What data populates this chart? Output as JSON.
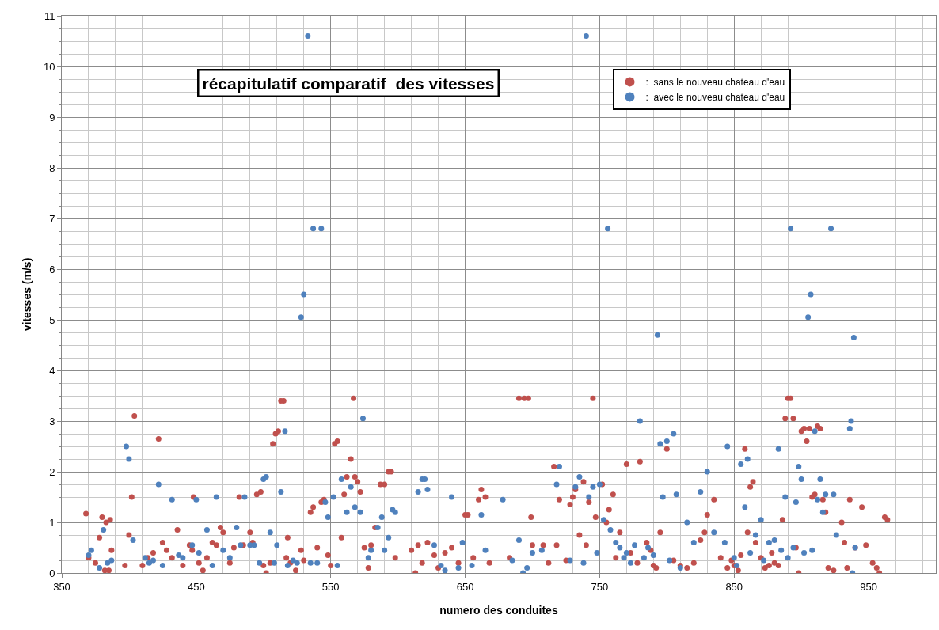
{
  "chart_data": {
    "type": "scatter",
    "title": "récapitulatif comparatif  des vitesses",
    "xlabel": "numero des conduites",
    "ylabel": "vitesses (m/s)",
    "xlim": [
      350,
      1000
    ],
    "xticks": [
      350,
      450,
      550,
      650,
      750,
      850,
      950
    ],
    "ylim": [
      0,
      11
    ],
    "yticks": [
      0,
      1,
      2,
      3,
      4,
      5,
      6,
      7,
      8,
      9,
      10,
      11
    ],
    "grid": true,
    "legend": "top right",
    "marker": "circle",
    "series": [
      {
        "name": ":  sans le nouveau chateau d'eau",
        "color": "#c0504d",
        "x": [
          368,
          370,
          375,
          378,
          380,
          382,
          383,
          386,
          387,
          385,
          397,
          400,
          402,
          404,
          410,
          414,
          418,
          422,
          425,
          428,
          432,
          436,
          440,
          445,
          447,
          448,
          452,
          455,
          458,
          462,
          465,
          468,
          470,
          475,
          478,
          482,
          485,
          490,
          492,
          495,
          498,
          500,
          502,
          505,
          507,
          509,
          511,
          513,
          515,
          517,
          518,
          520,
          524,
          528,
          530,
          535,
          537,
          540,
          543,
          545,
          548,
          550,
          553,
          555,
          558,
          560,
          562,
          565,
          567,
          568,
          570,
          572,
          575,
          578,
          580,
          583,
          587,
          590,
          593,
          595,
          598,
          610,
          613,
          615,
          618,
          622,
          627,
          630,
          635,
          640,
          645,
          650,
          652,
          656,
          660,
          662,
          665,
          668,
          683,
          690,
          694,
          697,
          699,
          700,
          708,
          712,
          716,
          718,
          720,
          725,
          728,
          730,
          732,
          735,
          738,
          740,
          742,
          745,
          747,
          752,
          755,
          757,
          760,
          762,
          765,
          770,
          773,
          778,
          780,
          785,
          788,
          790,
          792,
          795,
          800,
          805,
          810,
          815,
          820,
          825,
          828,
          830,
          835,
          840,
          845,
          848,
          850,
          853,
          855,
          858,
          860,
          862,
          864,
          866,
          870,
          873,
          876,
          878,
          880,
          883,
          886,
          888,
          890,
          892,
          894,
          896,
          898,
          900,
          902,
          904,
          906,
          908,
          910,
          912,
          914,
          916,
          918,
          920,
          924,
          930,
          932,
          934,
          936,
          940,
          945,
          948,
          953,
          956,
          958,
          962,
          964
        ],
        "values": [
          1.17,
          0.3,
          0.2,
          0.7,
          1.1,
          0.05,
          1.0,
          1.05,
          0.45,
          0.05,
          0.15,
          0.75,
          1.5,
          3.1,
          0.15,
          0.3,
          0.4,
          2.65,
          0.6,
          0.45,
          0.3,
          0.85,
          0.15,
          0.55,
          0.45,
          1.5,
          0.2,
          0.05,
          0.3,
          0.6,
          0.55,
          0.9,
          0.8,
          0.2,
          0.5,
          1.5,
          0.55,
          0.8,
          0.6,
          1.55,
          1.6,
          0.15,
          0.0,
          0.2,
          2.55,
          2.75,
          2.8,
          3.4,
          3.4,
          0.3,
          0.7,
          0.2,
          0.05,
          0.45,
          0.25,
          1.2,
          1.3,
          0.5,
          1.4,
          1.45,
          0.35,
          0.15,
          2.55,
          2.6,
          0.7,
          1.55,
          1.9,
          2.25,
          3.45,
          1.9,
          1.8,
          1.6,
          0.5,
          0.1,
          0.55,
          0.9,
          1.75,
          1.75,
          2.0,
          2.0,
          0.3,
          0.45,
          0.0,
          0.55,
          0.2,
          0.6,
          0.35,
          0.1,
          0.4,
          0.5,
          0.2,
          1.15,
          1.15,
          0.3,
          1.45,
          1.65,
          1.5,
          0.2,
          0.3,
          3.45,
          3.45,
          3.45,
          1.1,
          0.55,
          0.55,
          0.2,
          2.1,
          0.55,
          1.45,
          0.25,
          1.35,
          1.5,
          1.65,
          0.75,
          1.8,
          0.55,
          1.4,
          3.45,
          1.1,
          1.75,
          1.0,
          1.25,
          1.55,
          0.3,
          0.8,
          2.15,
          0.4,
          0.2,
          2.2,
          0.6,
          0.45,
          0.15,
          0.1,
          0.8,
          2.45,
          0.25,
          0.15,
          0.1,
          0.2,
          0.65,
          0.8,
          1.15,
          1.45,
          0.3,
          0.1,
          0.25,
          0.15,
          0.05,
          0.35,
          2.45,
          0.8,
          1.7,
          1.8,
          0.6,
          0.3,
          0.1,
          0.15,
          0.4,
          0.2,
          0.15,
          1.05,
          3.05,
          3.45,
          3.45,
          3.05,
          0.5,
          0.0,
          2.8,
          2.85,
          2.6,
          2.85,
          1.5,
          1.55,
          2.9,
          2.85,
          1.45,
          1.2,
          0.1,
          0.05,
          1.0,
          0.6,
          0.1,
          1.45,
          0.5,
          1.3,
          0.55,
          0.2,
          0.1,
          0.0,
          1.1,
          1.05
        ]
      },
      {
        "name": ":  avec le nouveau chateau d'eau",
        "color": "#4f81bd",
        "x": [
          370,
          372,
          378,
          381,
          384,
          387,
          398,
          400,
          403,
          412,
          415,
          418,
          422,
          425,
          432,
          437,
          440,
          447,
          450,
          452,
          458,
          462,
          465,
          470,
          475,
          480,
          483,
          486,
          490,
          493,
          497,
          500,
          502,
          505,
          508,
          510,
          513,
          516,
          518,
          522,
          525,
          528,
          530,
          533,
          535,
          537,
          540,
          543,
          546,
          548,
          552,
          555,
          558,
          562,
          565,
          568,
          572,
          574,
          578,
          580,
          585,
          588,
          590,
          593,
          596,
          598,
          615,
          618,
          620,
          622,
          627,
          632,
          635,
          640,
          645,
          648,
          655,
          662,
          665,
          678,
          685,
          690,
          693,
          696,
          700,
          707,
          718,
          720,
          728,
          732,
          735,
          738,
          740,
          742,
          745,
          748,
          750,
          753,
          756,
          758,
          762,
          765,
          768,
          770,
          773,
          776,
          780,
          783,
          786,
          790,
          793,
          795,
          797,
          800,
          802,
          805,
          807,
          810,
          815,
          820,
          825,
          830,
          835,
          843,
          845,
          850,
          852,
          855,
          858,
          860,
          862,
          866,
          870,
          872,
          876,
          880,
          883,
          885,
          888,
          890,
          892,
          894,
          896,
          898,
          900,
          902,
          905,
          907,
          908,
          910,
          912,
          914,
          916,
          918,
          922,
          924,
          926,
          936,
          937,
          938,
          939,
          940
        ],
        "values": [
          0.35,
          0.45,
          0.1,
          0.85,
          0.2,
          0.25,
          2.5,
          2.25,
          0.65,
          0.3,
          0.2,
          0.25,
          1.75,
          0.15,
          1.45,
          0.35,
          0.3,
          0.55,
          1.45,
          0.4,
          0.85,
          0.15,
          1.5,
          0.45,
          0.3,
          0.9,
          0.55,
          1.5,
          0.55,
          0.55,
          0.2,
          1.85,
          1.9,
          0.8,
          0.2,
          0.55,
          1.6,
          2.8,
          0.15,
          0.25,
          0.2,
          5.05,
          5.5,
          10.6,
          0.2,
          6.8,
          0.2,
          6.8,
          1.4,
          1.1,
          1.5,
          0.15,
          1.85,
          1.2,
          1.7,
          1.3,
          1.2,
          3.05,
          0.3,
          0.45,
          0.9,
          1.1,
          0.45,
          0.7,
          1.25,
          1.2,
          1.6,
          1.85,
          1.85,
          1.65,
          0.55,
          0.15,
          0.05,
          1.5,
          0.1,
          0.6,
          0.15,
          1.15,
          0.45,
          1.45,
          0.25,
          0.65,
          0.0,
          0.1,
          0.4,
          0.45,
          1.75,
          2.1,
          0.25,
          1.7,
          1.9,
          0.2,
          10.6,
          1.5,
          1.7,
          0.4,
          1.75,
          1.05,
          6.8,
          0.85,
          0.6,
          0.5,
          0.3,
          0.4,
          0.2,
          0.55,
          3.0,
          0.3,
          0.5,
          0.35,
          4.7,
          2.55,
          1.5,
          2.6,
          0.25,
          2.75,
          1.55,
          0.1,
          1.0,
          0.6,
          1.6,
          2.0,
          0.8,
          0.6,
          2.5,
          0.3,
          0.15,
          2.15,
          1.3,
          2.25,
          0.4,
          0.75,
          1.05,
          0.25,
          0.6,
          0.65,
          2.45,
          0.45,
          1.5,
          0.3,
          6.8,
          0.5,
          1.4,
          2.1,
          1.85,
          0.4,
          5.05,
          5.5,
          0.45,
          2.8,
          1.45,
          1.85,
          1.2,
          1.55,
          6.8,
          1.55,
          0.75,
          2.85,
          3.0,
          0.0,
          4.65,
          0.5
        ]
      }
    ]
  }
}
